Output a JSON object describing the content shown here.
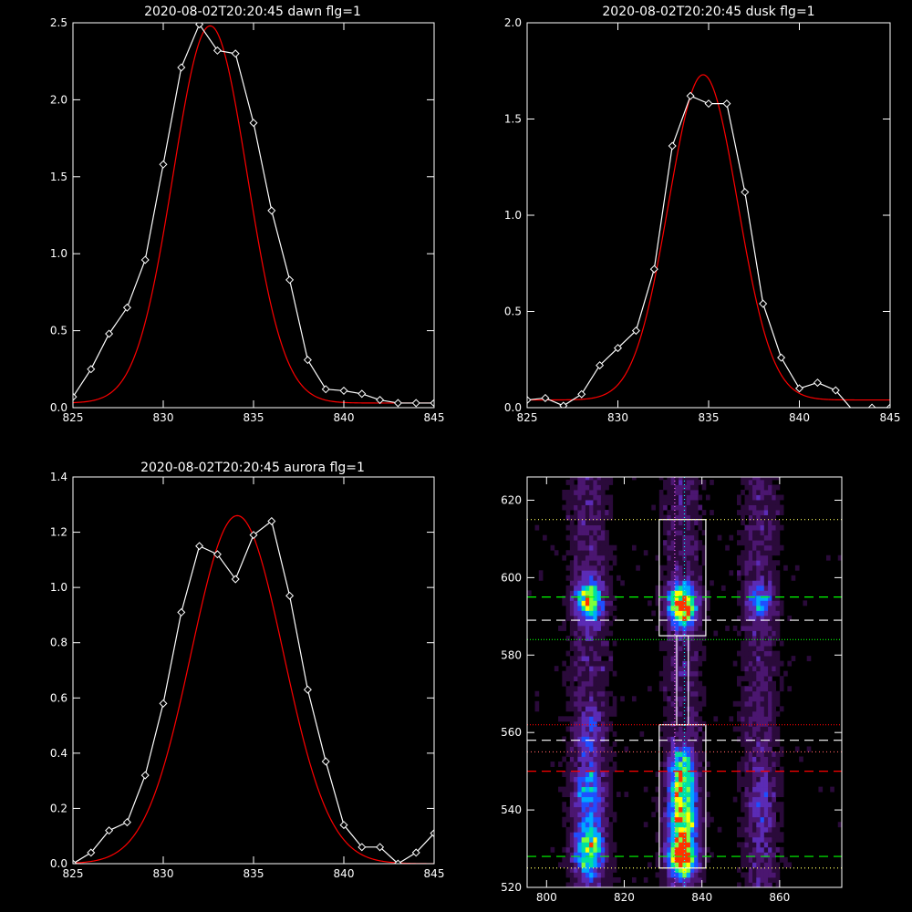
{
  "chart_data": [
    {
      "id": "dawn",
      "type": "line",
      "title": "2020-08-02T20:20:45 dawn flg=1",
      "xlim": [
        825,
        845
      ],
      "ylim": [
        0,
        2.5
      ],
      "xticks": [
        825,
        830,
        835,
        840,
        845
      ],
      "yticks": [
        0.0,
        0.5,
        1.0,
        1.5,
        2.0,
        2.5
      ],
      "ytick_labels": [
        "0.0",
        "0.5",
        "1.0",
        "1.5",
        "2.0",
        "2.5"
      ],
      "grid": false,
      "series": [
        {
          "kind": "observed",
          "color": "#ffffff",
          "marker": "diamond",
          "x": [
            825,
            826,
            827,
            828,
            829,
            830,
            831,
            832,
            833,
            834,
            835,
            836,
            837,
            838,
            839,
            840,
            841,
            842,
            843,
            844,
            845
          ],
          "y": [
            0.07,
            0.25,
            0.48,
            0.65,
            0.96,
            1.58,
            2.21,
            2.49,
            2.32,
            2.3,
            1.85,
            1.28,
            0.83,
            0.31,
            0.12,
            0.11,
            0.09,
            0.05,
            0.03,
            0.03,
            0.03
          ]
        },
        {
          "kind": "fit",
          "color": "#ff0000",
          "gaussian": {
            "center": 832.6,
            "amplitude": 2.45,
            "sigma": 2.05,
            "offset": 0.03
          }
        }
      ]
    },
    {
      "id": "dusk",
      "type": "line",
      "title": "2020-08-02T20:20:45 dusk flg=1",
      "xlim": [
        825,
        845
      ],
      "ylim": [
        0,
        2.0
      ],
      "xticks": [
        825,
        830,
        835,
        840,
        845
      ],
      "yticks": [
        0.0,
        0.5,
        1.0,
        1.5,
        2.0
      ],
      "ytick_labels": [
        "0.0",
        "0.5",
        "1.0",
        "1.5",
        "2.0"
      ],
      "grid": false,
      "series": [
        {
          "kind": "observed",
          "color": "#ffffff",
          "marker": "diamond",
          "x": [
            825,
            826,
            827,
            828,
            829,
            830,
            831,
            832,
            833,
            834,
            835,
            836,
            837,
            838,
            839,
            840,
            841,
            842,
            843,
            844,
            845
          ],
          "y": [
            0.04,
            0.05,
            0.01,
            0.07,
            0.22,
            0.31,
            0.4,
            0.72,
            1.36,
            1.62,
            1.58,
            1.58,
            1.12,
            0.54,
            0.26,
            0.1,
            0.13,
            0.09,
            -0.02,
            0.0,
            0.0
          ]
        },
        {
          "kind": "fit",
          "color": "#ff0000",
          "gaussian": {
            "center": 834.7,
            "amplitude": 1.69,
            "sigma": 1.9,
            "offset": 0.04
          }
        }
      ]
    },
    {
      "id": "aurora",
      "type": "line",
      "title": "2020-08-02T20:20:45 aurora flg=1",
      "xlim": [
        825,
        845
      ],
      "ylim": [
        0,
        1.4
      ],
      "xticks": [
        825,
        830,
        835,
        840,
        845
      ],
      "yticks": [
        0.0,
        0.2,
        0.4,
        0.6,
        0.8,
        1.0,
        1.2,
        1.4
      ],
      "ytick_labels": [
        "0.0",
        "0.2",
        "0.4",
        "0.6",
        "0.8",
        "1.0",
        "1.2",
        "1.4"
      ],
      "grid": false,
      "series": [
        {
          "kind": "observed",
          "color": "#ffffff",
          "marker": "diamond",
          "x": [
            825,
            826,
            827,
            828,
            829,
            830,
            831,
            832,
            833,
            834,
            835,
            836,
            837,
            838,
            839,
            840,
            841,
            842,
            843,
            844,
            845
          ],
          "y": [
            0.0,
            0.04,
            0.12,
            0.15,
            0.32,
            0.58,
            0.91,
            1.15,
            1.12,
            1.03,
            1.19,
            1.24,
            0.97,
            0.63,
            0.37,
            0.14,
            0.06,
            0.06,
            0.0,
            0.04,
            0.11
          ]
        },
        {
          "kind": "fit",
          "color": "#ff0000",
          "gaussian": {
            "center": 834.1,
            "amplitude": 1.26,
            "sigma": 2.55,
            "offset": 0.0
          }
        }
      ]
    },
    {
      "id": "spectrogram",
      "type": "heatmap",
      "title": "",
      "xlim": [
        795,
        876
      ],
      "ylim": [
        520,
        626
      ],
      "xticks": [
        800,
        820,
        840,
        860
      ],
      "yticks": [
        520,
        540,
        560,
        580,
        600,
        620
      ],
      "colormap": [
        "#000000",
        "#2a0a3a",
        "#4b1670",
        "#5b2bb5",
        "#1f4fff",
        "#00a8ff",
        "#00e0a0",
        "#7dff3a",
        "#ffff00",
        "#ff3300"
      ],
      "columns": [
        {
          "x": 811,
          "width": 4.5
        },
        {
          "x": 835,
          "width": 4.2
        },
        {
          "x": 855,
          "width": 4.0
        }
      ],
      "blobs": [
        {
          "x": 835,
          "y": 593,
          "sx": 2.5,
          "sy": 3.5,
          "amp": 0.9
        },
        {
          "x": 835,
          "y": 528,
          "sx": 2.5,
          "sy": 3.5,
          "amp": 1.0
        },
        {
          "x": 835,
          "y": 545,
          "sx": 2.5,
          "sy": 5.0,
          "amp": 0.55
        },
        {
          "x": 835,
          "y": 537,
          "sx": 2.5,
          "sy": 3.5,
          "amp": 0.55
        },
        {
          "x": 835,
          "y": 552,
          "sx": 2.0,
          "sy": 3.0,
          "amp": 0.35
        },
        {
          "x": 811,
          "y": 594,
          "sx": 2.5,
          "sy": 3.5,
          "amp": 0.65
        },
        {
          "x": 811,
          "y": 530,
          "sx": 2.5,
          "sy": 5.0,
          "amp": 0.6
        },
        {
          "x": 811,
          "y": 545,
          "sx": 2.5,
          "sy": 5.0,
          "amp": 0.35
        },
        {
          "x": 811,
          "y": 560,
          "sx": 2.5,
          "sy": 4.0,
          "amp": 0.18
        },
        {
          "x": 855,
          "y": 594,
          "sx": 2.5,
          "sy": 3.5,
          "amp": 0.3
        },
        {
          "x": 855,
          "y": 540,
          "sx": 2.5,
          "sy": 8.0,
          "amp": 0.12
        }
      ],
      "overlays": [
        {
          "kind": "rect",
          "x0": 829,
          "x1": 841,
          "y0": 585,
          "y1": 615,
          "color": "#ffffff"
        },
        {
          "kind": "rect",
          "x0": 829,
          "x1": 841,
          "y0": 525,
          "y1": 562,
          "color": "#ffffff"
        },
        {
          "kind": "rect",
          "x0": 833.5,
          "x1": 836.5,
          "y0": 562,
          "y1": 585,
          "color": "#ffffff"
        },
        {
          "kind": "hline",
          "y": 615,
          "color": "#ffff60",
          "dash": "1,3"
        },
        {
          "kind": "hline",
          "y": 595,
          "color": "#00ff00",
          "dash": "10,6"
        },
        {
          "kind": "hline",
          "y": 589,
          "color": "#ffffff",
          "dash": "10,6"
        },
        {
          "kind": "hline",
          "y": 584,
          "color": "#00ff00",
          "dash": "1,2"
        },
        {
          "kind": "hline",
          "y": 562,
          "color": "#ff0000",
          "dash": "1,2"
        },
        {
          "kind": "hline",
          "y": 558,
          "color": "#ffffff",
          "dash": "10,6"
        },
        {
          "kind": "hline",
          "y": 555,
          "color": "#ff6060",
          "dash": "1,3"
        },
        {
          "kind": "hline",
          "y": 550,
          "color": "#ff0000",
          "dash": "10,6"
        },
        {
          "kind": "hline",
          "y": 528,
          "color": "#00ff00",
          "dash": "10,6"
        },
        {
          "kind": "hline",
          "y": 525,
          "color": "#ffff60",
          "dash": "1,3"
        },
        {
          "kind": "vline",
          "x": 833,
          "color": "#ff66ff",
          "dash": "1,3"
        },
        {
          "kind": "vline",
          "x": 835.5,
          "color": "#00ffff",
          "dash": "1,3"
        }
      ]
    }
  ]
}
